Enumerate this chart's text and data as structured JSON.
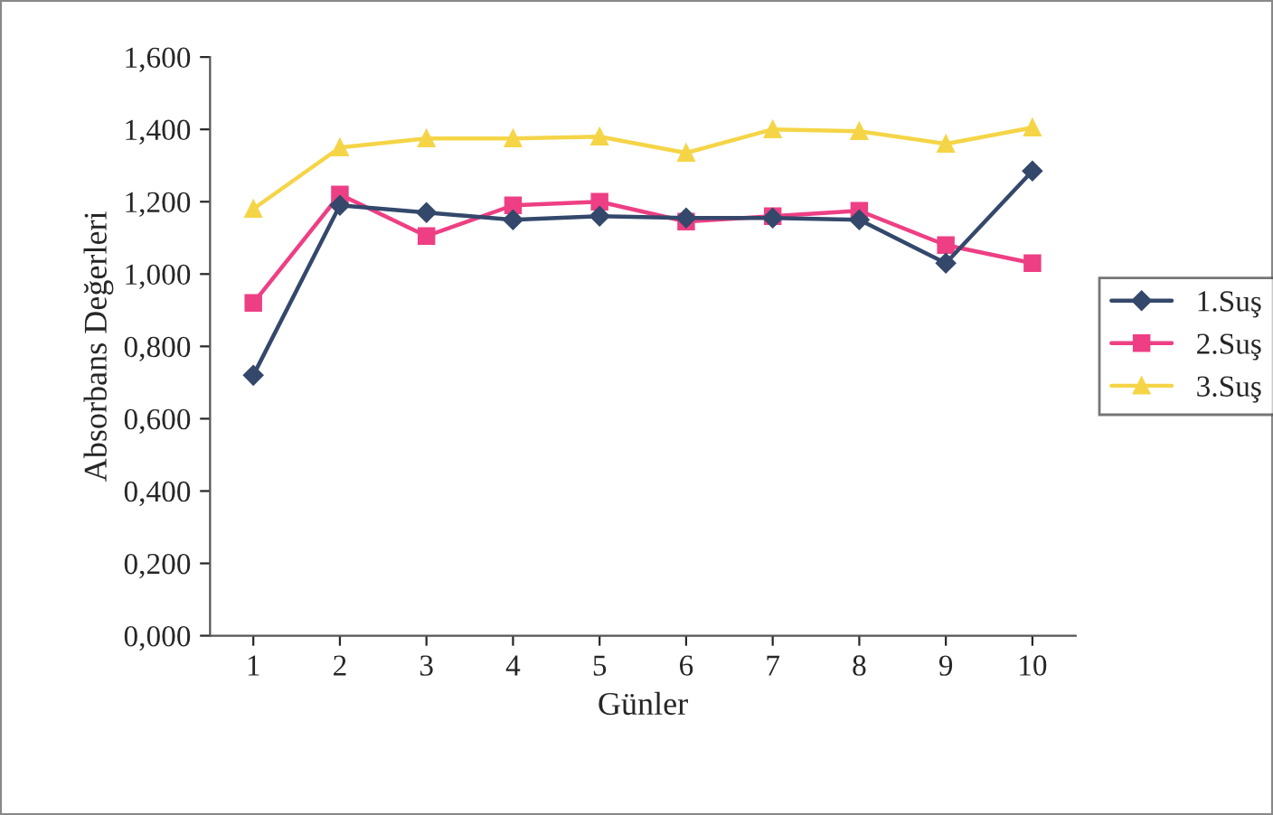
{
  "chart_data": {
    "type": "line",
    "xlabel": "Günler",
    "ylabel": "Absorbans Değerleri",
    "categories": [
      "1",
      "2",
      "3",
      "4",
      "5",
      "6",
      "7",
      "8",
      "9",
      "10"
    ],
    "series": [
      {
        "name": "1.Suş",
        "color": "#34486b",
        "marker": "diamond",
        "values": [
          0.72,
          1.19,
          1.17,
          1.15,
          1.16,
          1.155,
          1.155,
          1.15,
          1.03,
          1.285
        ]
      },
      {
        "name": "2.Suş",
        "color": "#ee3f84",
        "marker": "square",
        "values": [
          0.92,
          1.22,
          1.105,
          1.19,
          1.2,
          1.145,
          1.16,
          1.175,
          1.08,
          1.03
        ]
      },
      {
        "name": "3.Suş",
        "color": "#f5d547",
        "marker": "triangle",
        "values": [
          1.18,
          1.35,
          1.375,
          1.375,
          1.38,
          1.335,
          1.4,
          1.395,
          1.36,
          1.405
        ]
      }
    ],
    "ylim": [
      0,
      1.6
    ],
    "yticks": [
      {
        "value": 0,
        "label": "0,000"
      },
      {
        "value": 0.2,
        "label": "0,200"
      },
      {
        "value": 0.4,
        "label": "0,400"
      },
      {
        "value": 0.6,
        "label": "0,600"
      },
      {
        "value": 0.8,
        "label": "0,800"
      },
      {
        "value": 1.0,
        "label": "1,000"
      },
      {
        "value": 1.2,
        "label": "1,200"
      },
      {
        "value": 1.4,
        "label": "1,400"
      },
      {
        "value": 1.6,
        "label": "1,600"
      }
    ],
    "grid": false,
    "legend": "right",
    "line_style": "solid"
  }
}
